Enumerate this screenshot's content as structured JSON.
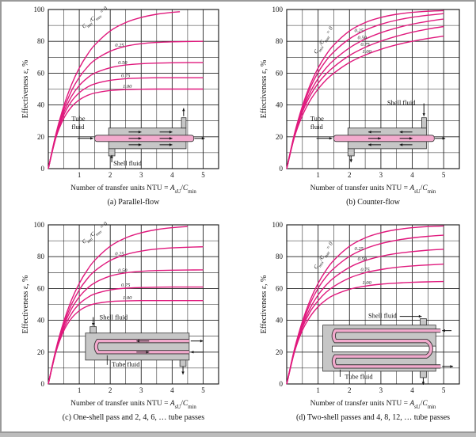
{
  "chart_data": [
    {
      "type": "line",
      "key": "a",
      "title": "(a) Parallel-flow",
      "xlabel": "Number of transfer units NTU = A_sU/C_min",
      "ylabel": "Effectiveness ε, %",
      "xlim": [
        0,
        5.5
      ],
      "ylim": [
        0,
        100
      ],
      "xticks": [
        1,
        2,
        3,
        4,
        5
      ],
      "yticks": [
        0,
        20,
        40,
        60,
        80,
        100
      ],
      "grid": true,
      "legend_title": "C_min/C_max = 0",
      "labels": {
        "tube": "Tube fluid",
        "shell": "Shell fluid"
      },
      "series": [
        {
          "name": "0",
          "label": "C_min/C_max = 0",
          "x": [
            0,
            0.25,
            0.5,
            0.75,
            1,
            1.25,
            1.5,
            2,
            2.5,
            3,
            3.5,
            4,
            4.25
          ],
          "values": [
            0,
            22.1,
            39.3,
            52.8,
            63.2,
            71.3,
            77.7,
            86.5,
            91.8,
            95,
            97,
            98.2,
            98.6
          ]
        },
        {
          "name": "0.25",
          "label": "0.25",
          "x": [
            0,
            0.25,
            0.5,
            0.75,
            1,
            1.25,
            1.5,
            2,
            2.5,
            3,
            3.5,
            4,
            4.5,
            5
          ],
          "values": [
            0,
            21.5,
            37.3,
            48.9,
            57.3,
            63.6,
            68.2,
            73.8,
            76.9,
            78.5,
            79.3,
            79.7,
            79.9,
            80
          ]
        },
        {
          "name": "0.50",
          "label": "0.50",
          "x": [
            0,
            0.25,
            0.5,
            0.75,
            1,
            1.25,
            1.5,
            2,
            2.5,
            3,
            3.5,
            4,
            4.5,
            5
          ],
          "values": [
            0,
            20.9,
            35.4,
            45.4,
            52.2,
            56.8,
            60,
            63.4,
            65.1,
            65.9,
            66.3,
            66.5,
            66.6,
            66.6
          ]
        },
        {
          "name": "0.75",
          "label": "0.75",
          "x": [
            0,
            0.25,
            0.5,
            0.75,
            1,
            1.25,
            1.5,
            2,
            2.5,
            3,
            3.5,
            4,
            4.5,
            5
          ],
          "values": [
            0,
            20.4,
            33.7,
            42.3,
            47.7,
            51.1,
            53.3,
            55.5,
            56.5,
            56.9,
            57.1,
            57.1,
            57.1,
            57.1
          ]
        },
        {
          "name": "1.00",
          "label": "1.00",
          "x": [
            0,
            0.25,
            0.5,
            0.75,
            1,
            1.25,
            1.5,
            2,
            2.5,
            3,
            3.5,
            4,
            4.5,
            5
          ],
          "values": [
            0,
            19.7,
            31.6,
            38.8,
            43.2,
            45.9,
            47.5,
            49.1,
            49.7,
            49.9,
            50,
            50,
            50,
            50
          ]
        }
      ]
    },
    {
      "type": "line",
      "key": "b",
      "title": "(b) Counter-flow",
      "xlabel": "Number of transfer units NTU = A_sU/C_min",
      "ylabel": "Effectiveness ε, %",
      "xlim": [
        0,
        5.5
      ],
      "ylim": [
        0,
        100
      ],
      "xticks": [
        1,
        2,
        3,
        4,
        5
      ],
      "yticks": [
        0,
        20,
        40,
        60,
        80,
        100
      ],
      "grid": true,
      "legend_title": "C_min/C_max = 0",
      "labels": {
        "tube": "Tube fluid",
        "shell": "Shell fluid"
      },
      "series": [
        {
          "name": "0",
          "label": "C_min/C_max = 0",
          "x": [
            0,
            0.25,
            0.5,
            0.75,
            1,
            1.25,
            1.5,
            2,
            2.5,
            3,
            3.5,
            4,
            4.5,
            5
          ],
          "values": [
            0,
            22.1,
            39.3,
            52.8,
            63.2,
            71.3,
            77.7,
            86.5,
            91.8,
            95,
            97,
            98.2,
            98.9,
            99.3
          ]
        },
        {
          "name": "0.25",
          "label": "0.25",
          "x": [
            0,
            0.25,
            0.5,
            0.75,
            1,
            1.25,
            1.5,
            2,
            2.5,
            3,
            3.5,
            4,
            4.5,
            5
          ],
          "values": [
            0,
            21.8,
            38,
            50.8,
            60.4,
            67.7,
            73.4,
            81.6,
            87,
            90.7,
            93.3,
            95.1,
            96.4,
            97.4
          ]
        },
        {
          "name": "0.50",
          "label": "0.50",
          "x": [
            0,
            0.25,
            0.5,
            0.75,
            1,
            1.25,
            1.5,
            2,
            2.5,
            3,
            3.5,
            4,
            4.5,
            5
          ],
          "values": [
            0,
            21.2,
            36.7,
            48.1,
            56.6,
            63.1,
            68.2,
            75.9,
            81.4,
            85.4,
            88.4,
            90.8,
            92.6,
            94
          ]
        },
        {
          "name": "0.75",
          "label": "0.75",
          "x": [
            0,
            0.25,
            0.5,
            0.75,
            1,
            1.25,
            1.5,
            2,
            2.5,
            3,
            3.5,
            4,
            4.5,
            5
          ],
          "values": [
            0,
            20.8,
            35.5,
            45.9,
            53.6,
            59.4,
            64,
            71.1,
            76.2,
            80.1,
            83.2,
            85.7,
            87.7,
            89.3
          ]
        },
        {
          "name": "1.00",
          "label": "1.00",
          "x": [
            0,
            0.25,
            0.5,
            0.75,
            1,
            1.25,
            1.5,
            2,
            2.5,
            3,
            3.5,
            4,
            4.5,
            5
          ],
          "values": [
            0,
            20,
            33.3,
            42.9,
            50,
            55.6,
            60,
            66.7,
            71.4,
            75,
            77.8,
            80,
            81.8,
            83.3
          ]
        }
      ]
    },
    {
      "type": "line",
      "key": "c",
      "title": "(c) One-shell pass and 2, 4, 6, … tube passes",
      "xlabel": "Number of transfer units NTU = A_sU/C_min",
      "ylabel": "Effectiveness ε, %",
      "xlim": [
        0,
        5.5
      ],
      "ylim": [
        0,
        100
      ],
      "xticks": [
        1,
        2,
        3,
        4,
        5
      ],
      "yticks": [
        0,
        20,
        40,
        60,
        80,
        100
      ],
      "grid": true,
      "legend_title": "C_min/C_max = 0",
      "labels": {
        "tube": "Tube fluid",
        "shell": "Shell fluid"
      },
      "series": [
        {
          "name": "0",
          "label": "C_min/C_max = 0",
          "x": [
            0,
            0.25,
            0.5,
            0.75,
            1,
            1.25,
            1.5,
            2,
            2.5,
            3,
            3.5,
            4,
            4.5
          ],
          "values": [
            0,
            22.1,
            39.3,
            52.8,
            63.2,
            71.3,
            77.7,
            86.5,
            91.8,
            95,
            97,
            98.2,
            98.9
          ]
        },
        {
          "name": "0.25",
          "label": "0.25",
          "x": [
            0,
            0.25,
            0.5,
            0.75,
            1,
            1.25,
            1.5,
            2,
            2.5,
            3,
            3.5,
            4,
            4.5,
            5
          ],
          "values": [
            0,
            21.7,
            37.8,
            50,
            59.1,
            65.9,
            71,
            77.6,
            81.3,
            83.5,
            84.8,
            85.5,
            85.9,
            86.2
          ]
        },
        {
          "name": "0.50",
          "label": "0.50",
          "x": [
            0,
            0.25,
            0.5,
            0.75,
            1,
            1.25,
            1.5,
            2,
            2.5,
            3,
            3.5,
            4,
            4.5,
            5
          ],
          "values": [
            0,
            21.2,
            36.4,
            47.2,
            54.7,
            59.9,
            63.6,
            67.8,
            69.8,
            70.8,
            71.3,
            71.5,
            71.6,
            71.7
          ]
        },
        {
          "name": "0.75",
          "label": "0.75",
          "x": [
            0,
            0.25,
            0.5,
            0.75,
            1,
            1.25,
            1.5,
            2,
            2.5,
            3,
            3.5,
            4,
            4.5,
            5
          ],
          "values": [
            0,
            20.7,
            34.8,
            44.2,
            50.3,
            54.1,
            56.6,
            59.1,
            60.2,
            60.6,
            60.8,
            60.9,
            60.9,
            60.9
          ]
        },
        {
          "name": "1.00",
          "label": "1.00",
          "x": [
            0,
            0.25,
            0.5,
            0.75,
            1,
            1.25,
            1.5,
            2,
            2.5,
            3,
            3.5,
            4,
            4.5,
            5
          ],
          "values": [
            0,
            20.3,
            33.4,
            41.3,
            46,
            48.8,
            50.4,
            51.8,
            52.2,
            52.4,
            52.4,
            52.4,
            52.4,
            52.4
          ]
        }
      ]
    },
    {
      "type": "line",
      "key": "d",
      "title": "(d) Two-shell passes and 4, 8, 12, … tube passes",
      "xlabel": "Number of transfer units NTU = A_sU/C_min",
      "ylabel": "Effectiveness ε, %",
      "xlim": [
        0,
        5.5
      ],
      "ylim": [
        0,
        100
      ],
      "xticks": [
        1,
        2,
        3,
        4,
        5
      ],
      "yticks": [
        0,
        20,
        40,
        60,
        80,
        100
      ],
      "grid": true,
      "legend_title": "C_min/C_max = 0",
      "labels": {
        "tube": "Tube fluid",
        "shell": "Shell fluid"
      },
      "series": [
        {
          "name": "0",
          "label": "C_min/C_max = 0",
          "x": [
            0,
            0.25,
            0.5,
            0.75,
            1,
            1.25,
            1.5,
            2,
            2.5,
            3,
            3.5,
            4,
            4.5,
            5
          ],
          "values": [
            0,
            22.1,
            39.3,
            52.8,
            63.2,
            71.3,
            77.7,
            86.5,
            91.8,
            95,
            97,
            98.2,
            98.9,
            99.3
          ]
        },
        {
          "name": "0.25",
          "label": "0.25",
          "x": [
            0,
            0.25,
            0.5,
            0.75,
            1,
            1.25,
            1.5,
            2,
            2.5,
            3,
            3.5,
            4,
            4.5,
            5
          ],
          "values": [
            0,
            21.8,
            38,
            50.6,
            60.1,
            67.2,
            72.6,
            80.2,
            85,
            88.2,
            90.3,
            91.8,
            92.8,
            93.5
          ]
        },
        {
          "name": "0.50",
          "label": "0.50",
          "x": [
            0,
            0.25,
            0.5,
            0.75,
            1,
            1.25,
            1.5,
            2,
            2.5,
            3,
            3.5,
            4,
            4.5,
            5
          ],
          "values": [
            0,
            21.2,
            36.7,
            47.7,
            55.9,
            62,
            66.7,
            73.3,
            77.5,
            80.2,
            82,
            83.2,
            84.1,
            84.7
          ]
        },
        {
          "name": "0.75",
          "label": "0.75",
          "x": [
            0,
            0.25,
            0.5,
            0.75,
            1,
            1.25,
            1.5,
            2,
            2.5,
            3,
            3.5,
            4,
            4.5,
            5
          ],
          "values": [
            0,
            20.8,
            35.4,
            45.5,
            52.3,
            57.5,
            61.3,
            66.6,
            69.9,
            71.9,
            73.3,
            74.2,
            74.8,
            75.3
          ]
        },
        {
          "name": "1.00",
          "label": "1.00",
          "x": [
            0,
            0.25,
            0.5,
            0.75,
            1,
            1.25,
            1.5,
            2,
            2.5,
            3,
            3.5,
            4,
            4.5,
            5
          ],
          "values": [
            0,
            20.2,
            33.7,
            42.4,
            48.5,
            52.8,
            55.8,
            59.5,
            61.5,
            62.7,
            63.4,
            63.9,
            64.2,
            64.4
          ]
        }
      ]
    }
  ],
  "style": {
    "curve": "#e0197d",
    "grid": "#222222",
    "shell": "#c6c6c6",
    "tube": "#f2aacd",
    "page": "#ffffff"
  }
}
